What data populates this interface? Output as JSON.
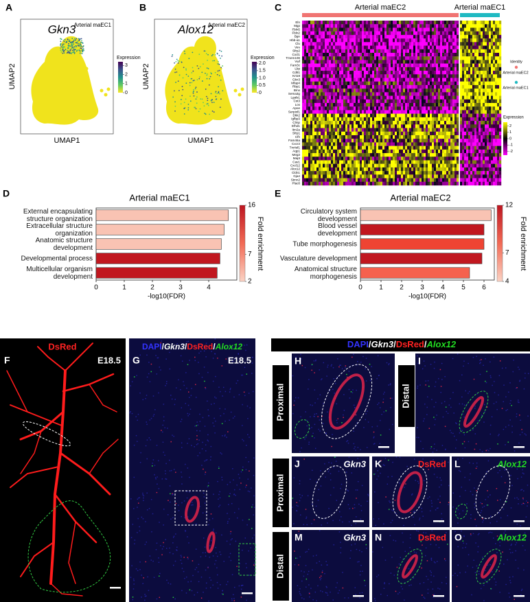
{
  "chart_data": [
    {
      "type": "barh",
      "panel": "D",
      "title": "Arterial maEC1",
      "xlabel": "-log10(FDR)",
      "categories": [
        "External encapsulating\nstructure organization",
        "Extracellular structure\norganization",
        "Anatomic structure\ndevelopment",
        "Developmental process",
        "Multicellular organism\ndevelopment"
      ],
      "values": [
        4.7,
        4.55,
        4.45,
        4.4,
        4.3
      ],
      "colors": [
        "#f9c3b3",
        "#f9c3b3",
        "#f9c3b3",
        "#c1171f",
        "#c1171f"
      ],
      "xlim": [
        0,
        5
      ],
      "xticks": [
        0,
        1,
        2,
        3,
        4
      ],
      "colorbar": {
        "label": "Fold enrichment",
        "lim": [
          2,
          16
        ],
        "ticks": [
          2,
          7,
          16
        ]
      }
    },
    {
      "type": "barh",
      "panel": "E",
      "title": "Arterial maEC2",
      "xlabel": "-log10(FDR)",
      "categories": [
        "Circulatory system\ndevelopment",
        "Blood vessel\ndevelopment",
        "Tube morphogenesis",
        "Vasculature development",
        "Anatomical structure\nmorphogenesis"
      ],
      "values": [
        6.35,
        6.0,
        6.0,
        5.9,
        5.3
      ],
      "colors": [
        "#f9c3b3",
        "#c1171f",
        "#ef4433",
        "#c1171f",
        "#f5614e"
      ],
      "xlim": [
        0,
        6.5
      ],
      "xticks": [
        0,
        1,
        2,
        3,
        4,
        5,
        6
      ],
      "colorbar": {
        "label": "Fold enrichment",
        "lim": [
          4,
          12
        ],
        "ticks": [
          4,
          7,
          12
        ]
      }
    }
  ],
  "umap": [
    {
      "panel": "A",
      "gene": "Gkn3",
      "cluster": "Arterial maEC1",
      "xlabel": "UMAP1",
      "ylabel": "UMAP2",
      "legend_title": "Expression",
      "legend_lim": [
        0,
        3.4
      ],
      "legend_ticks": [
        0,
        1,
        2,
        3
      ]
    },
    {
      "panel": "B",
      "gene": "Alox12",
      "cluster": "Arterial maEC2",
      "xlabel": "UMAP1",
      "ylabel": "UMAP2",
      "legend_title": "Expression",
      "legend_lim": [
        0,
        2.1
      ],
      "legend_ticks": [
        0,
        0.5,
        {
          "value": 1,
          "label": "1.0"
        },
        1.5,
        {
          "value": 2,
          "label": "2.0"
        }
      ]
    }
  ],
  "heatmap": {
    "panel": "C",
    "groups": [
      {
        "name": "Arterial maEC2",
        "color": "#f07472"
      },
      {
        "name": "Arterial maEC1",
        "color": "#1fb9c2"
      }
    ],
    "genes": [
      "Eln",
      "Mgp",
      "Fbln5",
      "Fbln2",
      "Bgn",
      "Hbb-a1",
      "Clu",
      "Vim",
      "Sfrp2",
      "Cxcl1",
      "Tmem108",
      "Vwf",
      "Fam3c",
      "Lbp",
      "Cd81",
      "Krt18",
      "Gkn3",
      "Mfap4",
      "Rbp1",
      "Bmx",
      "Sema3g",
      "Lgals1",
      "Cst3",
      "Lox",
      "Apoe",
      "Serpinf1",
      "Dkk2",
      "Igfbp3",
      "Clmp",
      "Efhd1",
      "Itm2a",
      "Sfrp1",
      "Cfh",
      "Fam46a",
      "Cxcr2",
      "Tm4sf1",
      "Aqp1",
      "Meg3",
      "Mapt",
      "Cav1",
      "Cxcl12",
      "Alox12",
      "Cldn1",
      "Gja4",
      "Stmn2",
      "Plac8"
    ],
    "identity_title": "Identity",
    "legend_title": "Expression",
    "legend_lim": [
      -2.6,
      2.6
    ],
    "legend_ticks": [
      -2,
      -1,
      0,
      1,
      2
    ]
  },
  "images": {
    "stain": [
      {
        "text": "DAPI",
        "color": "#3333ff",
        "italic": false
      },
      {
        "text": "Gkn3",
        "color": "#ffffff",
        "italic": true
      },
      {
        "text": "DsRed",
        "color": "#ff2222",
        "italic": false
      },
      {
        "text": "Alox12",
        "color": "#22dd22",
        "italic": true
      }
    ],
    "separator": "/",
    "F": {
      "panel": "F",
      "header": "DsRed",
      "stage": "E18.5"
    },
    "G": {
      "panel": "G",
      "stage": "E18.5"
    },
    "H": {
      "panel": "H",
      "side": "Proximal"
    },
    "I": {
      "panel": "I",
      "side": "Distal"
    },
    "J": {
      "panel": "J",
      "marker": "Gkn3",
      "side": "Proximal"
    },
    "K": {
      "panel": "K",
      "marker": "DsRed"
    },
    "L": {
      "panel": "L",
      "marker": "Alox12"
    },
    "M": {
      "panel": "M",
      "marker": "Gkn3",
      "side": "Distal"
    },
    "N": {
      "panel": "N",
      "marker": "DsRed"
    },
    "O": {
      "panel": "O",
      "marker": "Alox12"
    }
  }
}
